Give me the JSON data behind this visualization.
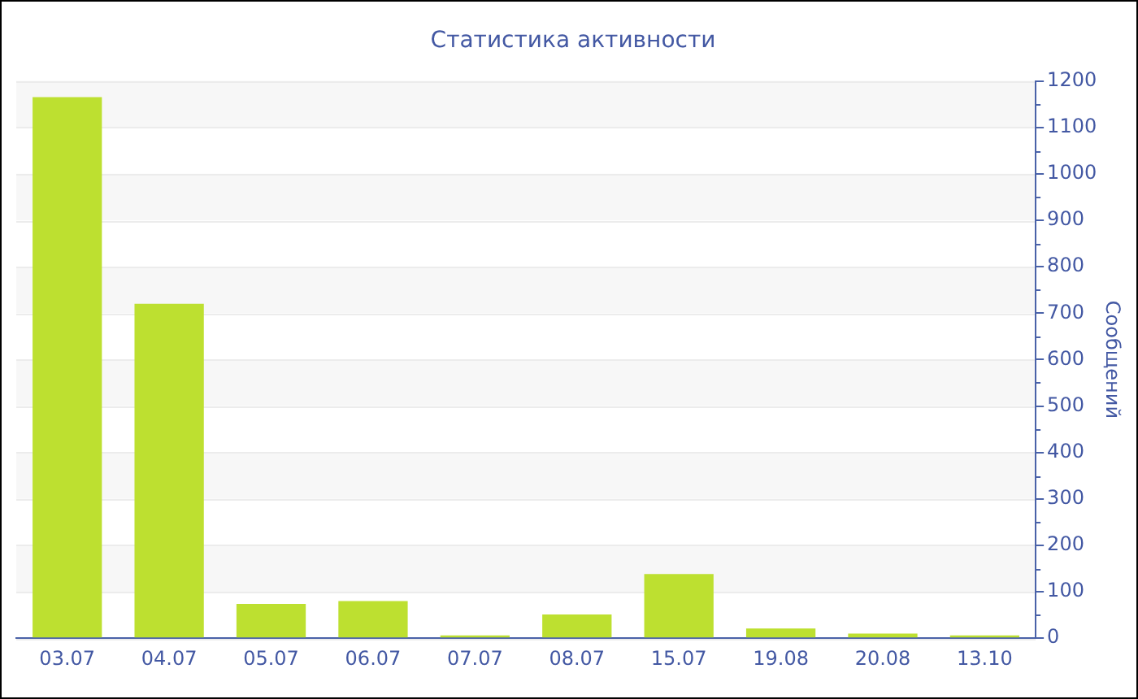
{
  "chart_data": {
    "type": "bar",
    "title": "Статистика активности",
    "ylabel": "Сообщений",
    "categories": [
      "03.07",
      "04.07",
      "05.07",
      "06.07",
      "07.07",
      "08.07",
      "15.07",
      "19.08",
      "20.08",
      "13.10"
    ],
    "values": [
      1165,
      720,
      74,
      80,
      6,
      51,
      138,
      21,
      10,
      6
    ],
    "color": "#bde030",
    "ylim": [
      0,
      1200
    ],
    "yticks": [
      0,
      {
        "value": 50,
        "label": null
      },
      100,
      {
        "value": 150,
        "label": null
      },
      200,
      {
        "value": 250,
        "label": null
      },
      300,
      {
        "value": 350,
        "label": null
      },
      400,
      {
        "value": 450,
        "label": null
      },
      500,
      {
        "value": 550,
        "label": null
      },
      600,
      {
        "value": 650,
        "label": null
      },
      700,
      {
        "value": 750,
        "label": null
      },
      800,
      {
        "value": 850,
        "label": null
      },
      900,
      {
        "value": 950,
        "label": null
      },
      1000,
      {
        "value": 1050,
        "label": null
      },
      1100,
      {
        "value": 1150,
        "label": null
      },
      1200
    ],
    "grid": "y"
  }
}
